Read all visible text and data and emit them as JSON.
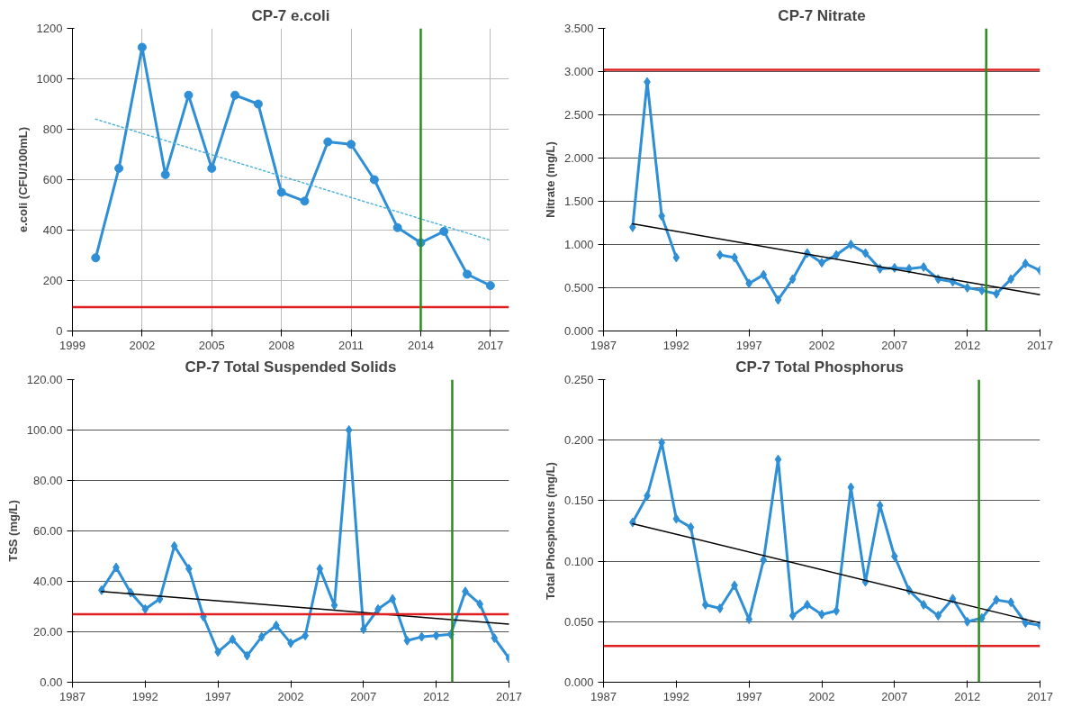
{
  "chart_data": [
    {
      "type": "line",
      "title": "CP-7 e.coli",
      "ylabel": "e.coli (CFU/100mL)",
      "xlim": [
        1999,
        2017.8
      ],
      "xticks": [
        1999,
        2002,
        2005,
        2008,
        2011,
        2014,
        2017
      ],
      "ylim": [
        0,
        1200
      ],
      "yticks": [
        0,
        200,
        400,
        600,
        800,
        1000,
        1200
      ],
      "grid": true,
      "series": [
        {
          "color": "#2e8fd6",
          "marker": "circle",
          "line_style": "solid",
          "x": [
            2000,
            2001,
            2002,
            2003,
            2004,
            2005,
            2006,
            2007,
            2008,
            2009,
            2010,
            2011,
            2012,
            2013,
            2014,
            2015,
            2016,
            2017
          ],
          "values": [
            290,
            645,
            1125,
            620,
            935,
            645,
            935,
            900,
            550,
            515,
            750,
            740,
            600,
            410,
            350,
            395,
            225,
            180
          ]
        },
        {
          "color": "#4fb3d9",
          "marker": "none",
          "line_style": "dotted",
          "x": [
            2000,
            2017
          ],
          "values": [
            840,
            360
          ]
        }
      ],
      "ref_lines": [
        {
          "axis": "y",
          "value": 95,
          "color": "#e02020",
          "line_style": "solid"
        },
        {
          "axis": "x",
          "value": 2014,
          "color": "#2e8b1e",
          "line_style": "solid"
        }
      ]
    },
    {
      "type": "line",
      "title": "CP-7 Nitrate",
      "ylabel": "Nitrate (mg/L)",
      "xlim": [
        1987,
        2017
      ],
      "xticks": [
        1987,
        1992,
        1997,
        2002,
        2007,
        2012,
        2017
      ],
      "ylim": [
        0,
        3.5
      ],
      "yticks": [
        {
          "value": 0,
          "label": "0.000"
        },
        {
          "value": 0.5,
          "label": "0.500"
        },
        {
          "value": 1,
          "label": "1.000"
        },
        {
          "value": 1.5,
          "label": "1.500"
        },
        {
          "value": 2,
          "label": "2.000"
        },
        {
          "value": 2.5,
          "label": "2.500"
        },
        {
          "value": 3,
          "label": "3.000"
        },
        {
          "value": 3.5,
          "label": "3.500"
        }
      ],
      "grid": "y",
      "series": [
        {
          "color": "#2e8fd6",
          "marker": "diamond",
          "line_style": "solid",
          "x": [
            1989,
            1990,
            1991,
            1992,
            1993,
            1994,
            1995,
            1996,
            1997,
            1998,
            1999,
            2000,
            2001,
            2002,
            2003,
            2004,
            2005,
            2006,
            2007,
            2008,
            2009,
            2010,
            2011,
            2012,
            2013,
            2014,
            2015,
            2016,
            2017
          ],
          "values": [
            1.2,
            2.88,
            1.33,
            0.85,
            null,
            null,
            0.88,
            0.85,
            0.55,
            0.65,
            0.36,
            0.6,
            0.9,
            0.79,
            0.88,
            1.0,
            0.9,
            0.72,
            0.73,
            0.72,
            0.74,
            0.6,
            0.57,
            0.5,
            0.47,
            0.43,
            0.6,
            0.78,
            0.7
          ]
        },
        {
          "color": "#000000",
          "marker": "none",
          "line_style": "solid",
          "x": [
            1989,
            2017
          ],
          "values": [
            1.24,
            0.42
          ]
        }
      ],
      "ref_lines": [
        {
          "axis": "y",
          "value": 3.02,
          "color": "#e02020",
          "line_style": "solid"
        },
        {
          "axis": "x",
          "value": 2013.3,
          "color": "#2e8b1e",
          "line_style": "solid"
        }
      ]
    },
    {
      "type": "line",
      "title": "CP-7 Total Suspended Solids",
      "ylabel": "TSS (mg/L)",
      "xlim": [
        1987,
        2017
      ],
      "xticks": [
        1987,
        1992,
        1997,
        2002,
        2007,
        2012,
        2017
      ],
      "ylim": [
        0,
        120
      ],
      "yticks": [
        {
          "value": 0,
          "label": "0.00"
        },
        {
          "value": 20,
          "label": "20.00"
        },
        {
          "value": 40,
          "label": "40.00"
        },
        {
          "value": 60,
          "label": "60.00"
        },
        {
          "value": 80,
          "label": "80.00"
        },
        {
          "value": 100,
          "label": "100.00"
        },
        {
          "value": 120,
          "label": "120.00"
        }
      ],
      "grid": "y",
      "series": [
        {
          "color": "#2e8fd6",
          "marker": "diamond",
          "line_style": "solid",
          "x": [
            1989,
            1990,
            1991,
            1992,
            1993,
            1994,
            1995,
            1996,
            1997,
            1998,
            1999,
            2000,
            2001,
            2002,
            2003,
            2004,
            2005,
            2006,
            2007,
            2008,
            2009,
            2010,
            2011,
            2012,
            2013,
            2014,
            2015,
            2016,
            2017
          ],
          "values": [
            36.5,
            45.5,
            35.5,
            29,
            33,
            54,
            45,
            26,
            12,
            17,
            10.5,
            18,
            22.5,
            15.5,
            18.5,
            45,
            30.5,
            100,
            21,
            29,
            33,
            16.5,
            18,
            18.5,
            19,
            36,
            31,
            17.5,
            9.5
          ]
        },
        {
          "color": "#000000",
          "marker": "none",
          "line_style": "solid",
          "x": [
            1989,
            2017
          ],
          "values": [
            36,
            23
          ]
        }
      ],
      "ref_lines": [
        {
          "axis": "y",
          "value": 27,
          "color": "#e02020",
          "line_style": "solid"
        },
        {
          "axis": "x",
          "value": 2013.1,
          "color": "#2e8b1e",
          "line_style": "solid"
        }
      ]
    },
    {
      "type": "line",
      "title": "CP-7  Total Phosphorus",
      "ylabel": "Total Phosphorus (mg/L)",
      "xlim": [
        1987,
        2017
      ],
      "xticks": [
        1987,
        1992,
        1997,
        2002,
        2007,
        2012,
        2017
      ],
      "ylim": [
        0,
        0.25
      ],
      "yticks": [
        {
          "value": 0,
          "label": "0.000"
        },
        {
          "value": 0.05,
          "label": "0.050"
        },
        {
          "value": 0.1,
          "label": "0.100"
        },
        {
          "value": 0.15,
          "label": "0.150"
        },
        {
          "value": 0.2,
          "label": "0.200"
        },
        {
          "value": 0.25,
          "label": "0.250"
        }
      ],
      "grid": "y",
      "series": [
        {
          "color": "#2e8fd6",
          "marker": "diamond",
          "line_style": "solid",
          "x": [
            1989,
            1990,
            1991,
            1992,
            1993,
            1994,
            1995,
            1996,
            1997,
            1998,
            1999,
            2000,
            2001,
            2002,
            2003,
            2004,
            2005,
            2006,
            2007,
            2008,
            2009,
            2010,
            2011,
            2012,
            2013,
            2014,
            2015,
            2016,
            2017
          ],
          "values": [
            0.132,
            0.154,
            0.198,
            0.135,
            0.128,
            0.064,
            0.061,
            0.08,
            0.052,
            0.101,
            0.184,
            0.055,
            0.064,
            0.056,
            0.059,
            0.161,
            0.083,
            0.146,
            0.104,
            0.076,
            0.064,
            0.055,
            0.069,
            0.05,
            0.053,
            0.068,
            0.066,
            0.049,
            0.047
          ]
        },
        {
          "color": "#000000",
          "marker": "none",
          "line_style": "solid",
          "x": [
            1989,
            2017
          ],
          "values": [
            0.131,
            0.049
          ]
        }
      ],
      "ref_lines": [
        {
          "axis": "y",
          "value": 0.03,
          "color": "#e02020",
          "line_style": "solid"
        },
        {
          "axis": "x",
          "value": 2012.8,
          "color": "#2e8b1e",
          "line_style": "solid"
        }
      ]
    }
  ]
}
